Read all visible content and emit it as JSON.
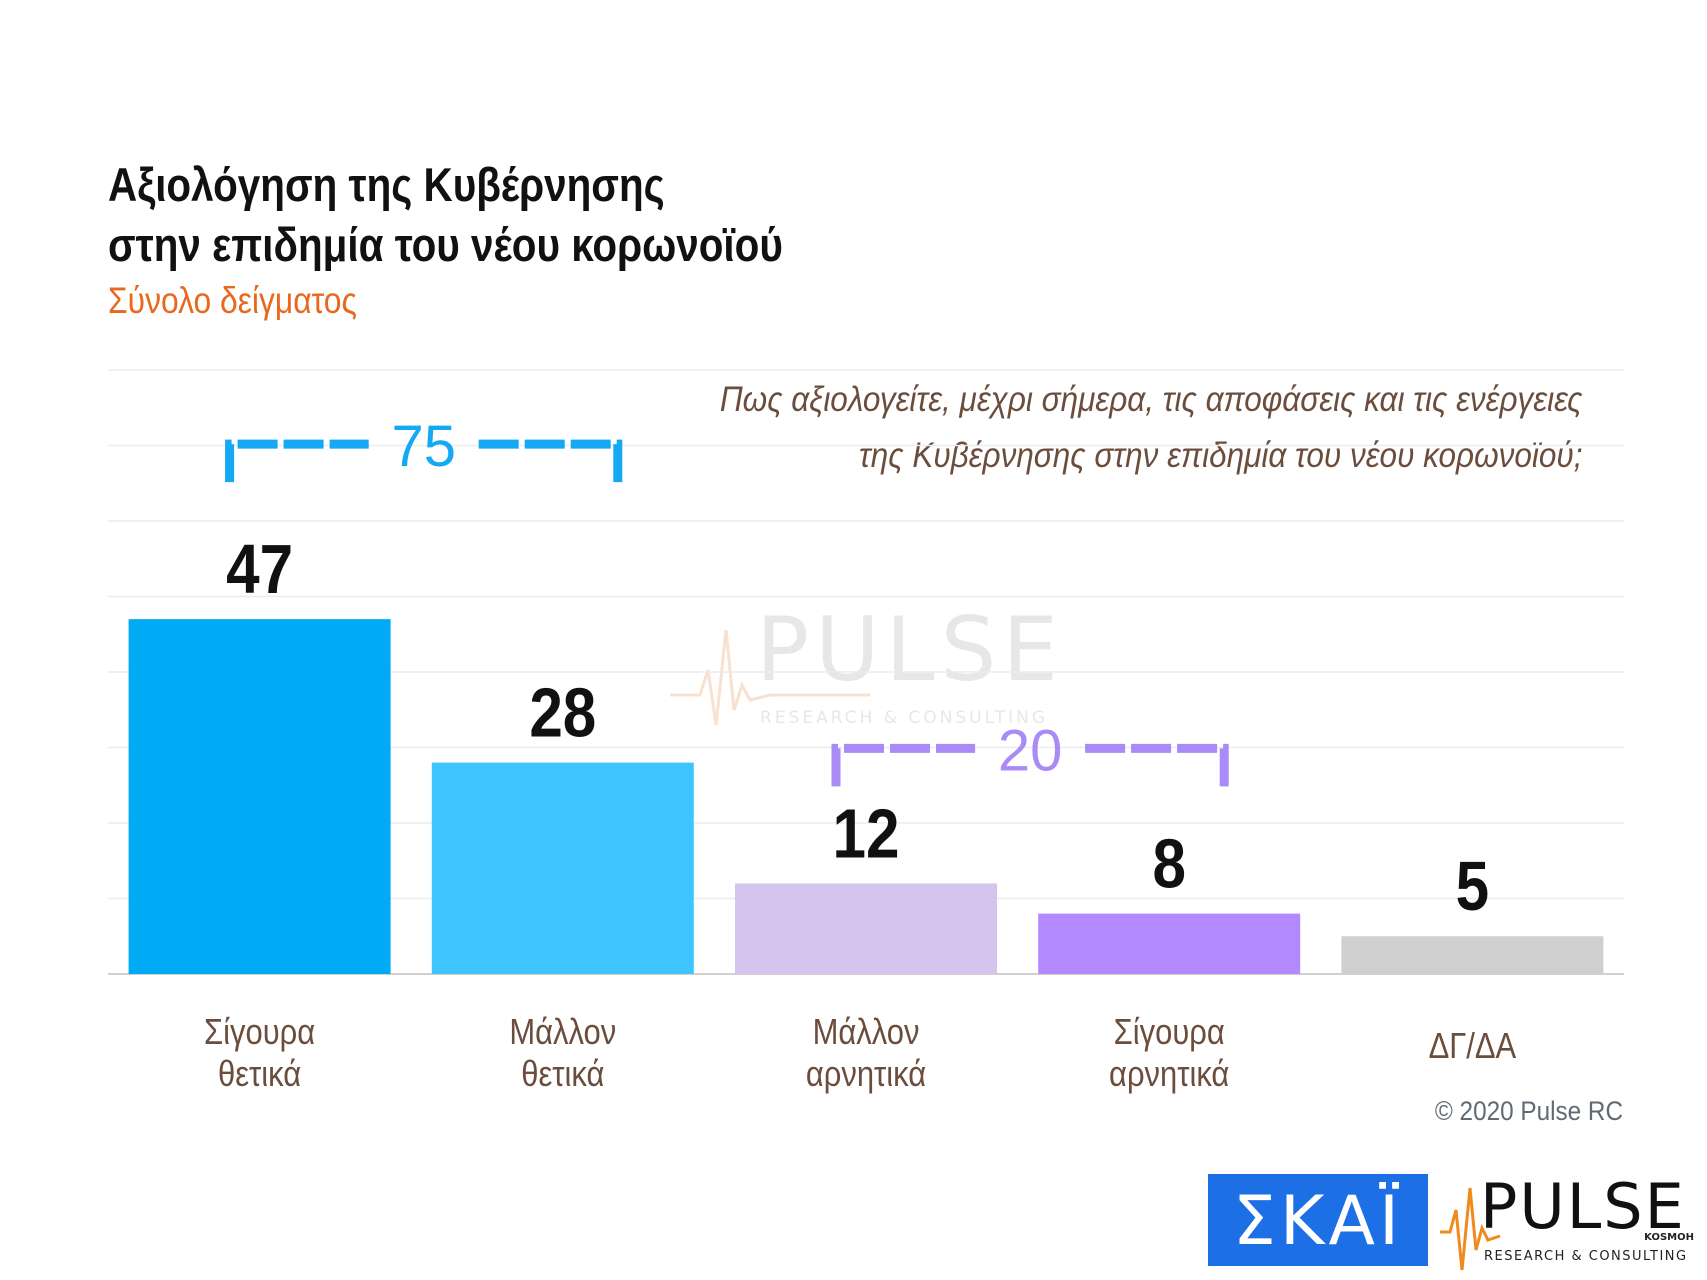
{
  "header": {
    "title_line1": "Αξιολόγηση της Κυβέρνησης",
    "title_line2": "στην επιδημία του νέου κορωνοϊού",
    "subtitle": "Σύνολο δείγματος"
  },
  "question": {
    "line1": "Πως αξιολογείτε, μέχρι σήμερα, τις αποφάσεις και τις ενέργειες",
    "line2": "της Κυβέρνησης στην επιδημία του νέου κορωνοϊού;"
  },
  "chart_data": {
    "type": "bar",
    "title": "Αξιολόγηση της Κυβέρνησης στην επιδημία του νέου κορωνοϊού",
    "subtitle": "Σύνολο δείγματος",
    "categories": [
      [
        "Σίγουρα",
        "θετικά"
      ],
      [
        "Μάλλον",
        "θετικά"
      ],
      [
        "Μάλλον",
        "αρνητικά"
      ],
      [
        "Σίγουρα",
        "αρνητικά"
      ],
      [
        "ΔΓ/ΔΑ"
      ]
    ],
    "values": [
      47,
      28,
      12,
      8,
      5
    ],
    "colors": [
      "#00aaf5",
      "#40c4ff",
      "#d5c4ec",
      "#b289ff",
      "#cfcfcf"
    ],
    "ylim": [
      0,
      80
    ],
    "grid": true,
    "brackets": [
      {
        "label": "75",
        "from": 0,
        "to": 1,
        "color": "#14a9f2"
      },
      {
        "label": "20",
        "from": 2,
        "to": 3,
        "color": "#a98af7"
      }
    ]
  },
  "footer": {
    "copyright": "© 2020 Pulse RC",
    "logo_skai_text": "ΣΚΑΪ",
    "logo_pulse_text": "PULSE",
    "logo_pulse_sub": "RESEARCH & CONSULTING",
    "logo_pulse_tag": "KOSMOH"
  },
  "colors": {
    "accent": "#e8681e",
    "question": "#6b4d3d",
    "label": "#6b4d3d"
  }
}
